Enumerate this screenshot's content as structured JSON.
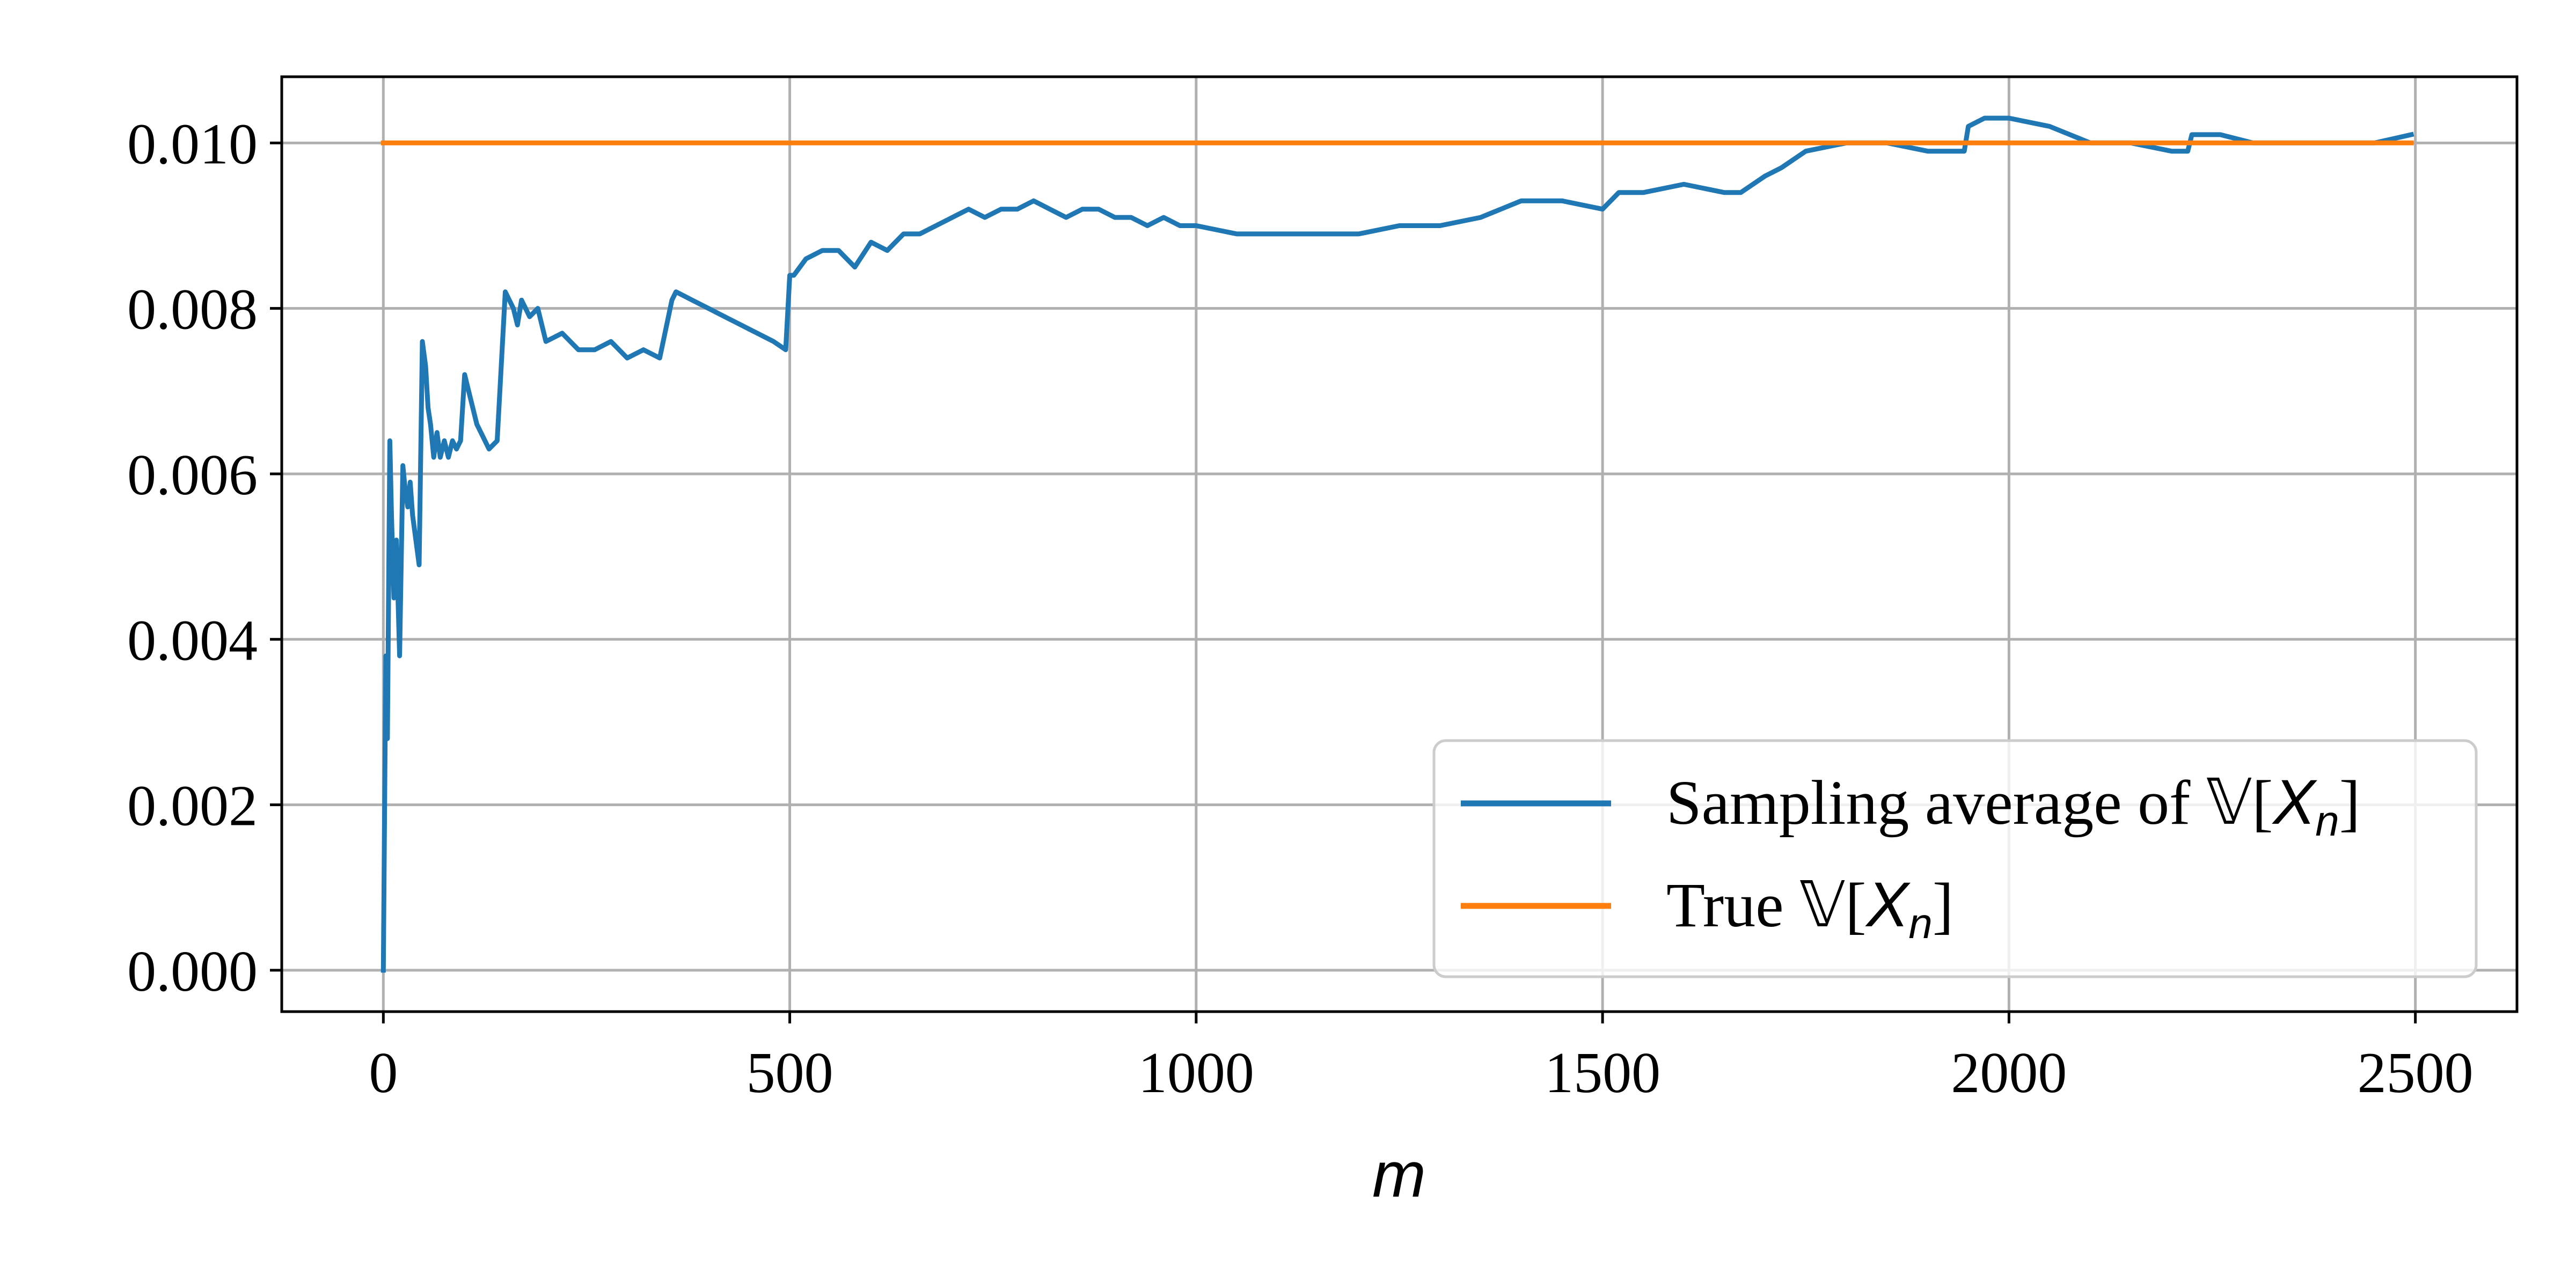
{
  "chart_data": {
    "type": "line",
    "title": "",
    "xlabel": "m",
    "ylabel": "",
    "xlim": [
      -125,
      2625
    ],
    "ylim": [
      -0.0005,
      0.0108
    ],
    "grid": true,
    "legend_position": "lower-right",
    "x_ticks": [
      0,
      500,
      1000,
      1500,
      2000,
      2500
    ],
    "x_tick_labels": [
      "0",
      "500",
      "1000",
      "1500",
      "2000",
      "2500"
    ],
    "y_ticks": [
      0,
      0.002,
      0.004,
      0.006,
      0.008,
      0.01
    ],
    "y_tick_labels": [
      "0.000",
      "0.002",
      "0.004",
      "0.006",
      "0.008",
      "0.010"
    ],
    "series": [
      {
        "name": "Sampling average of 𝕍[X_n]",
        "legend_main": "Sampling average of 𝕍[",
        "legend_var": "X",
        "legend_sub": "n",
        "legend_close": "]",
        "color": "#1f77b4",
        "x": [
          0,
          3,
          5,
          8,
          10,
          13,
          16,
          20,
          24,
          27,
          30,
          33,
          36,
          40,
          44,
          48,
          52,
          55,
          58,
          62,
          66,
          70,
          75,
          80,
          85,
          90,
          95,
          100,
          105,
          110,
          115,
          120,
          130,
          140,
          150,
          160,
          165,
          170,
          180,
          190,
          200,
          220,
          240,
          260,
          280,
          300,
          320,
          340,
          355,
          360,
          380,
          400,
          420,
          440,
          460,
          480,
          495,
          500,
          505,
          520,
          540,
          560,
          580,
          600,
          620,
          640,
          660,
          680,
          700,
          720,
          740,
          760,
          780,
          800,
          820,
          840,
          860,
          880,
          900,
          920,
          940,
          960,
          980,
          1000,
          1050,
          1100,
          1150,
          1200,
          1250,
          1300,
          1350,
          1400,
          1450,
          1500,
          1520,
          1550,
          1600,
          1650,
          1670,
          1700,
          1720,
          1750,
          1800,
          1850,
          1900,
          1945,
          1950,
          1970,
          2000,
          2050,
          2100,
          2150,
          2200,
          2220,
          2225,
          2260,
          2300,
          2350,
          2400,
          2450,
          2495
        ],
        "values": [
          0.0,
          0.0038,
          0.0028,
          0.0064,
          0.0055,
          0.0045,
          0.0052,
          0.0038,
          0.0061,
          0.0058,
          0.0056,
          0.0059,
          0.0055,
          0.0052,
          0.0049,
          0.0076,
          0.0073,
          0.0068,
          0.0066,
          0.0062,
          0.0065,
          0.0062,
          0.0064,
          0.0062,
          0.0064,
          0.0063,
          0.0064,
          0.0072,
          0.007,
          0.0068,
          0.0066,
          0.0065,
          0.0063,
          0.0064,
          0.0082,
          0.008,
          0.0078,
          0.0081,
          0.0079,
          0.008,
          0.0076,
          0.0077,
          0.0075,
          0.0075,
          0.0076,
          0.0074,
          0.0075,
          0.0074,
          0.0081,
          0.0082,
          0.0081,
          0.008,
          0.0079,
          0.0078,
          0.0077,
          0.0076,
          0.0075,
          0.0084,
          0.0084,
          0.0086,
          0.0087,
          0.0087,
          0.0085,
          0.0088,
          0.0087,
          0.0089,
          0.0089,
          0.009,
          0.0091,
          0.0092,
          0.0091,
          0.0092,
          0.0092,
          0.0093,
          0.0092,
          0.0091,
          0.0092,
          0.0092,
          0.0091,
          0.0091,
          0.009,
          0.0091,
          0.009,
          0.009,
          0.0089,
          0.0089,
          0.0089,
          0.0089,
          0.009,
          0.009,
          0.0091,
          0.0093,
          0.0093,
          0.0092,
          0.0094,
          0.0094,
          0.0095,
          0.0094,
          0.0094,
          0.0096,
          0.0097,
          0.0099,
          0.01,
          0.01,
          0.0099,
          0.0099,
          0.0102,
          0.0103,
          0.0103,
          0.0102,
          0.01,
          0.01,
          0.0099,
          0.0099,
          0.0101,
          0.0101,
          0.01,
          0.01,
          0.01,
          0.01,
          0.0101
        ]
      },
      {
        "name": "True 𝕍[X_n]",
        "legend_main": "True 𝕍[",
        "legend_var": "X",
        "legend_sub": "n",
        "legend_close": "]",
        "color": "#ff7f0e",
        "x": [
          0,
          2495
        ],
        "values": [
          0.01,
          0.01
        ]
      }
    ]
  }
}
